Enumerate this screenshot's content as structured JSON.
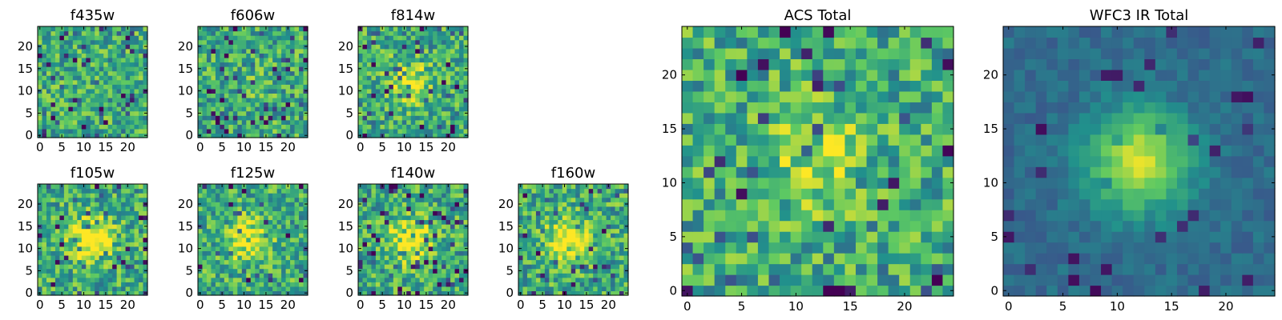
{
  "figure": {
    "colormap": [
      "#440154",
      "#3b528b",
      "#21918c",
      "#5ec962",
      "#fde725"
    ],
    "axis_color": "#000000",
    "background": "#ffffff"
  },
  "chart_data": [
    {
      "type": "heatmap",
      "title": "f435w",
      "grid_size": 25,
      "xlim": [
        -0.5,
        24.5
      ],
      "ylim": [
        -0.5,
        24.5
      ],
      "xticks": [
        0,
        5,
        10,
        15,
        20
      ],
      "yticks": [
        0,
        5,
        10,
        15,
        20
      ],
      "grid": false,
      "description_values": "noise",
      "center": [
        12,
        12
      ],
      "peak": 0.0,
      "seed": 11
    },
    {
      "type": "heatmap",
      "title": "f606w",
      "grid_size": 25,
      "xlim": [
        -0.5,
        24.5
      ],
      "ylim": [
        -0.5,
        24.5
      ],
      "xticks": [
        0,
        5,
        10,
        15,
        20
      ],
      "yticks": [
        0,
        5,
        10,
        15,
        20
      ],
      "grid": false,
      "description_values": "noise",
      "center": [
        12,
        12
      ],
      "peak": 0.05,
      "seed": 23
    },
    {
      "type": "heatmap",
      "title": "f814w",
      "grid_size": 25,
      "xlim": [
        -0.5,
        24.5
      ],
      "ylim": [
        -0.5,
        24.5
      ],
      "xticks": [
        0,
        5,
        10,
        15,
        20
      ],
      "yticks": [
        0,
        5,
        10,
        15,
        20
      ],
      "grid": false,
      "description_values": "faint source",
      "center": [
        11,
        12
      ],
      "peak": 0.35,
      "seed": 37
    },
    {
      "type": "heatmap",
      "title": "f105w",
      "grid_size": 25,
      "xlim": [
        -0.5,
        24.5
      ],
      "ylim": [
        -0.5,
        24.5
      ],
      "xticks": [
        0,
        5,
        10,
        15,
        20
      ],
      "yticks": [
        0,
        5,
        10,
        15,
        20
      ],
      "grid": false,
      "description_values": "source",
      "center": [
        12,
        12
      ],
      "peak": 0.55,
      "seed": 41
    },
    {
      "type": "heatmap",
      "title": "f125w",
      "grid_size": 25,
      "xlim": [
        -0.5,
        24.5
      ],
      "ylim": [
        -0.5,
        24.5
      ],
      "xticks": [
        0,
        5,
        10,
        15,
        20
      ],
      "yticks": [
        0,
        5,
        10,
        15,
        20
      ],
      "grid": false,
      "description_values": "source",
      "center": [
        11,
        12
      ],
      "peak": 0.45,
      "seed": 53
    },
    {
      "type": "heatmap",
      "title": "f140w",
      "grid_size": 25,
      "xlim": [
        -0.5,
        24.5
      ],
      "ylim": [
        -0.5,
        24.5
      ],
      "xticks": [
        0,
        5,
        10,
        15,
        20
      ],
      "yticks": [
        0,
        5,
        10,
        15,
        20
      ],
      "grid": false,
      "description_values": "source",
      "center": [
        11,
        12
      ],
      "peak": 0.5,
      "seed": 67
    },
    {
      "type": "heatmap",
      "title": "f160w",
      "grid_size": 25,
      "xlim": [
        -0.5,
        24.5
      ],
      "ylim": [
        -0.5,
        24.5
      ],
      "xticks": [
        0,
        5,
        10,
        15,
        20
      ],
      "yticks": [
        0,
        5,
        10,
        15,
        20
      ],
      "grid": false,
      "description_values": "source",
      "center": [
        11,
        12
      ],
      "peak": 0.5,
      "seed": 79
    },
    {
      "type": "heatmap",
      "title": "ACS Total",
      "grid_size": 25,
      "xlim": [
        -0.5,
        24.5
      ],
      "ylim": [
        -0.5,
        24.5
      ],
      "xticks": [
        0,
        5,
        10,
        15,
        20
      ],
      "yticks": [
        0,
        5,
        10,
        15,
        20
      ],
      "grid": false,
      "description_values": "noise with faint source",
      "center": [
        12,
        12
      ],
      "peak": 0.25,
      "seed": 97
    },
    {
      "type": "heatmap",
      "title": "WFC3 IR Total",
      "grid_size": 25,
      "xlim": [
        -0.5,
        24.5
      ],
      "ylim": [
        -0.5,
        24.5
      ],
      "xticks": [
        0,
        5,
        10,
        15,
        20
      ],
      "yticks": [
        0,
        5,
        10,
        15,
        20
      ],
      "grid": false,
      "description_values": "strong source",
      "center": [
        12,
        12
      ],
      "peak": 1.0,
      "seed": 113
    }
  ]
}
